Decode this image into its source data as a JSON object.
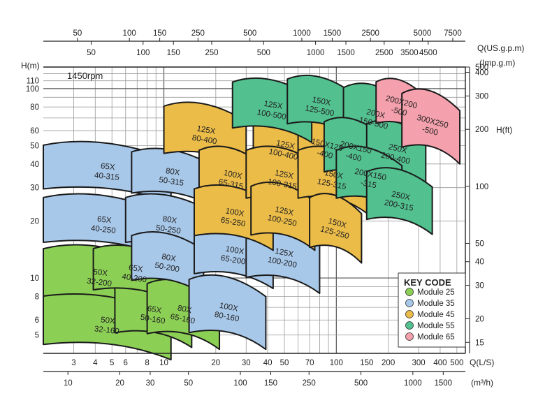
{
  "chart_data": {
    "type": "area",
    "title": "",
    "speed_label": "1450rpm",
    "scale": "log-log",
    "grid": true,
    "xlim": [
      2,
      560
    ],
    "ylim": [
      4,
      130
    ],
    "x_axes": {
      "q_ls": {
        "unit": "Q(L/S)",
        "ticks": [
          3,
          4,
          5,
          6,
          8,
          10,
          20,
          30,
          40,
          50,
          70,
          100,
          150,
          200,
          300,
          400,
          500
        ]
      },
      "q_m3h": {
        "unit": "(m³/h)",
        "ticks": [
          10,
          20,
          30,
          50,
          100,
          150,
          250,
          500,
          1000,
          1500
        ]
      },
      "q_usgpm": {
        "unit": "Q(US.g.p.m)",
        "ticks": [
          50,
          100,
          150,
          250,
          500,
          1000,
          1500,
          2500,
          5000,
          7500
        ]
      },
      "q_impgpm": {
        "unit": "(Imp.g.m)",
        "ticks": [
          50,
          100,
          150,
          250,
          500,
          1000,
          1500,
          2500,
          3500,
          4500
        ]
      }
    },
    "y_axes": {
      "h_m": {
        "unit": "H(m)",
        "ticks": [
          5,
          6,
          8,
          10,
          20,
          30,
          40,
          50,
          60,
          80,
          100,
          110
        ]
      },
      "h_ft": {
        "unit": "H(ft)",
        "ticks": [
          15,
          20,
          30,
          40,
          50,
          100,
          200,
          300,
          400,
          500
        ]
      }
    },
    "legend": {
      "title": "KEY CODE",
      "position": "bottom-right",
      "items": [
        {
          "label": "Module  25",
          "color": "#8ccf55"
        },
        {
          "label": "Module  35",
          "color": "#a8c8ea"
        },
        {
          "label": "Module  45",
          "color": "#ecbc48"
        },
        {
          "label": "Module  55",
          "color": "#52c08f"
        },
        {
          "label": "Module  65",
          "color": "#f4a0ad"
        }
      ]
    },
    "series": [
      {
        "label": [
          "50X",
          "32-160"
        ],
        "module": 25,
        "q_range": [
          2,
          11
        ],
        "h_range": [
          3.7,
          8.2
        ]
      },
      {
        "label": [
          "50X",
          "32-200"
        ],
        "module": 25,
        "q_range": [
          2,
          9
        ],
        "h_range": [
          6.7,
          14.5
        ]
      },
      {
        "label": [
          "65X",
          "50-160"
        ],
        "module": 25,
        "q_range": [
          5.2,
          14.5
        ],
        "h_range": [
          4.3,
          9.2
        ]
      },
      {
        "label": [
          "65X",
          "40-200"
        ],
        "module": 25,
        "q_range": [
          3.9,
          11.8
        ],
        "h_range": [
          7.4,
          14.5
        ]
      },
      {
        "label": [
          "80X",
          "65-160"
        ],
        "module": 25,
        "q_range": [
          8,
          21
        ],
        "h_range": [
          4.2,
          9.5
        ]
      },
      {
        "label": [
          "65X",
          "40-315"
        ],
        "module": 35,
        "q_range": [
          2,
          11
        ],
        "h_range": [
          25,
          51
        ]
      },
      {
        "label": [
          "65X",
          "40-250"
        ],
        "module": 35,
        "q_range": [
          2,
          10
        ],
        "h_range": [
          13,
          27
        ]
      },
      {
        "label": [
          "80X",
          "50-315"
        ],
        "module": 35,
        "q_range": [
          6.5,
          19
        ],
        "h_range": [
          24,
          47
        ]
      },
      {
        "label": [
          "80X",
          "50-250"
        ],
        "module": 35,
        "q_range": [
          6,
          19
        ],
        "h_range": [
          13,
          27
        ]
      },
      {
        "label": [
          "80X",
          "50-200"
        ],
        "module": 35,
        "q_range": [
          6.5,
          17
        ],
        "h_range": [
          8.2,
          17
        ]
      },
      {
        "label": [
          "100X",
          "80-160"
        ],
        "module": 35,
        "q_range": [
          14,
          39
        ],
        "h_range": [
          4.2,
          10
        ]
      },
      {
        "label": [
          "100X",
          "65-200"
        ],
        "module": 35,
        "q_range": [
          15,
          43
        ],
        "h_range": [
          8.8,
          19
        ]
      },
      {
        "label": [
          "125X",
          "100-200"
        ],
        "module": 35,
        "q_range": [
          30,
          80
        ],
        "h_range": [
          8.3,
          19
        ]
      },
      {
        "label": [
          "125X",
          "80-400"
        ],
        "module": 45,
        "q_range": [
          10,
          30
        ],
        "h_range": [
          38,
          82
        ]
      },
      {
        "label": [
          "100X",
          "65-315"
        ],
        "module": 45,
        "q_range": [
          16,
          38
        ],
        "h_range": [
          22,
          48
        ]
      },
      {
        "label": [
          "100X",
          "65-250"
        ],
        "module": 45,
        "q_range": [
          15,
          43
        ],
        "h_range": [
          14,
          30
        ]
      },
      {
        "label": [
          "125X",
          "100-400"
        ],
        "module": 45,
        "q_range": [
          33,
          75
        ],
        "h_range": [
          32,
          68
        ]
      },
      {
        "label": [
          "125X",
          "100-315"
        ],
        "module": 45,
        "q_range": [
          30,
          80
        ],
        "h_range": [
          22,
          48
        ]
      },
      {
        "label": [
          "125X",
          "100-250"
        ],
        "module": 45,
        "q_range": [
          32,
          75
        ],
        "h_range": [
          14,
          31
        ]
      },
      {
        "label": [
          "150X125",
          "-400"
        ],
        "module": 45,
        "q_range": [
          60,
          125
        ],
        "h_range": [
          32,
          68
        ]
      },
      {
        "label": [
          "150X",
          "125-315"
        ],
        "module": 45,
        "q_range": [
          60,
          150
        ],
        "h_range": [
          22,
          48
        ]
      },
      {
        "label": [
          "150X",
          "125-250"
        ],
        "module": 45,
        "q_range": [
          70,
          140
        ],
        "h_range": [
          12,
          27
        ]
      },
      {
        "label": [
          "125X",
          "100-500"
        ],
        "module": 55,
        "q_range": [
          25,
          72
        ],
        "h_range": [
          52,
          110
        ]
      },
      {
        "label": [
          "150X",
          "125-500"
        ],
        "module": 55,
        "q_range": [
          52,
          125
        ],
        "h_range": [
          55,
          114
        ]
      },
      {
        "label": [
          "200X",
          "150-500"
        ],
        "module": 55,
        "q_range": [
          110,
          250
        ],
        "h_range": [
          45,
          103
        ]
      },
      {
        "label": [
          "200X150",
          "-400"
        ],
        "module": 55,
        "q_range": [
          85,
          190
        ],
        "h_range": [
          30,
          68
        ]
      },
      {
        "label": [
          "250X",
          "200-400"
        ],
        "module": 55,
        "q_range": [
          150,
          330
        ],
        "h_range": [
          30,
          66
        ]
      },
      {
        "label": [
          "200X150",
          "-315"
        ],
        "module": 55,
        "q_range": [
          100,
          240
        ],
        "h_range": [
          22,
          48
        ]
      },
      {
        "label": [
          "250X",
          "200-315"
        ],
        "module": 55,
        "q_range": [
          150,
          360
        ],
        "h_range": [
          17,
          37
        ]
      },
      {
        "label": [
          "200X200",
          "-500"
        ],
        "module": 65,
        "q_range": [
          170,
          320
        ],
        "h_range": [
          56,
          110
        ]
      },
      {
        "label": [
          "300X250",
          "-500"
        ],
        "module": 65,
        "q_range": [
          240,
          520
        ],
        "h_range": [
          40,
          96
        ]
      }
    ]
  }
}
